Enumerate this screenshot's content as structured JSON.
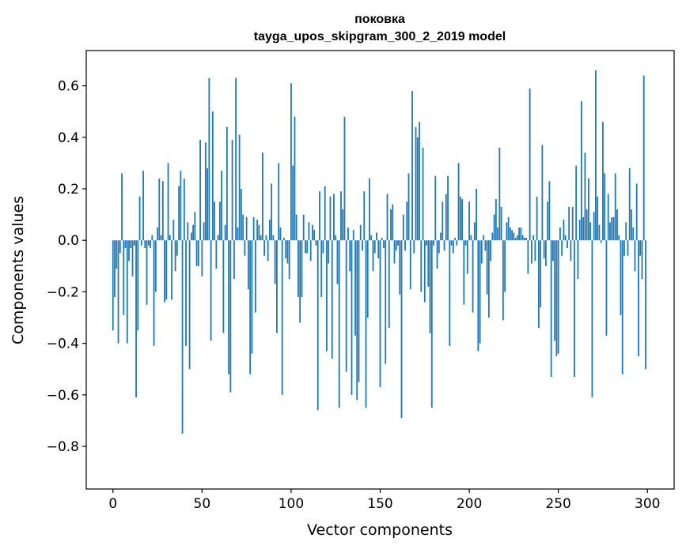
{
  "chart_data": {
    "type": "bar",
    "title": "поковка",
    "subtitle": "tayga_upos_skipgram_300_2_2019 model",
    "xlabel": "Vector components",
    "ylabel": "Components values",
    "xlim": [
      -15,
      315
    ],
    "ylim": [
      -0.9655,
      0.7368
    ],
    "xticks": [
      0,
      50,
      100,
      150,
      200,
      250,
      300
    ],
    "yticks": [
      -0.8,
      -0.6,
      -0.4,
      -0.2,
      0.0,
      0.2,
      0.4,
      0.6
    ],
    "ytick_labels": [
      "−0.8",
      "−0.6",
      "−0.4",
      "−0.2",
      "0.0",
      "0.2",
      "0.4",
      "0.6"
    ],
    "bar_color": "#1f77b4",
    "grid": false,
    "legend": false,
    "x": [
      0,
      1,
      2,
      3,
      4,
      5,
      6,
      7,
      8,
      9,
      10,
      11,
      12,
      13,
      14,
      15,
      16,
      17,
      18,
      19,
      20,
      21,
      22,
      23,
      24,
      25,
      26,
      27,
      28,
      29,
      30,
      31,
      32,
      33,
      34,
      35,
      36,
      37,
      38,
      39,
      40,
      41,
      42,
      43,
      44,
      45,
      46,
      47,
      48,
      49,
      50,
      51,
      52,
      53,
      54,
      55,
      56,
      57,
      58,
      59,
      60,
      61,
      62,
      63,
      64,
      65,
      66,
      67,
      68,
      69,
      70,
      71,
      72,
      73,
      74,
      75,
      76,
      77,
      78,
      79,
      80,
      81,
      82,
      83,
      84,
      85,
      86,
      87,
      88,
      89,
      90,
      91,
      92,
      93,
      94,
      95,
      96,
      97,
      98,
      99,
      100,
      101,
      102,
      103,
      104,
      105,
      106,
      107,
      108,
      109,
      110,
      111,
      112,
      113,
      114,
      115,
      116,
      117,
      118,
      119,
      120,
      121,
      122,
      123,
      124,
      125,
      126,
      127,
      128,
      129,
      130,
      131,
      132,
      133,
      134,
      135,
      136,
      137,
      138,
      139,
      140,
      141,
      142,
      143,
      144,
      145,
      146,
      147,
      148,
      149,
      150,
      151,
      152,
      153,
      154,
      155,
      156,
      157,
      158,
      159,
      160,
      161,
      162,
      163,
      164,
      165,
      166,
      167,
      168,
      169,
      170,
      171,
      172,
      173,
      174,
      175,
      176,
      177,
      178,
      179,
      180,
      181,
      182,
      183,
      184,
      185,
      186,
      187,
      188,
      189,
      190,
      191,
      192,
      193,
      194,
      195,
      196,
      197,
      198,
      199,
      200,
      201,
      202,
      203,
      204,
      205,
      206,
      207,
      208,
      209,
      210,
      211,
      212,
      213,
      214,
      215,
      216,
      217,
      218,
      219,
      220,
      221,
      222,
      223,
      224,
      225,
      226,
      227,
      228,
      229,
      230,
      231,
      232,
      233,
      234,
      235,
      236,
      237,
      238,
      239,
      240,
      241,
      242,
      243,
      244,
      245,
      246,
      247,
      248,
      249,
      250,
      251,
      252,
      253,
      254,
      255,
      256,
      257,
      258,
      259,
      260,
      261,
      262,
      263,
      264,
      265,
      266,
      267,
      268,
      269,
      270,
      271,
      272,
      273,
      274,
      275,
      276,
      277,
      278,
      279,
      280,
      281,
      282,
      283,
      284,
      285,
      286,
      287,
      288,
      289,
      290,
      291,
      292,
      293,
      294,
      295,
      296,
      297,
      298,
      299
    ],
    "values": [
      -0.35,
      -0.22,
      -0.11,
      -0.4,
      -0.05,
      0.26,
      -0.29,
      -0.03,
      -0.4,
      -0.08,
      -0.03,
      -0.14,
      -0.02,
      -0.61,
      -0.35,
      0.17,
      -0.02,
      0.27,
      -0.03,
      -0.25,
      -0.02,
      -0.03,
      0.02,
      -0.41,
      -0.2,
      0.05,
      0.24,
      0.02,
      0.23,
      -0.24,
      -0.23,
      0.3,
      0.02,
      -0.23,
      0.08,
      -0.12,
      -0.06,
      0.21,
      0.27,
      -0.75,
      0.24,
      -0.41,
      0.07,
      -0.5,
      0.03,
      0.06,
      0.11,
      -0.1,
      -0.1,
      0.39,
      -0.14,
      0.07,
      0.38,
      0.28,
      0.63,
      -0.39,
      0.5,
      0.15,
      -0.11,
      0.02,
      0.15,
      0.27,
      -0.36,
      0.06,
      0.44,
      -0.52,
      -0.59,
      0.39,
      -0.15,
      0.63,
      0.05,
      0.41,
      0.2,
      0.1,
      -0.06,
      0.09,
      -0.19,
      -0.52,
      -0.44,
      0.09,
      -0.28,
      0.08,
      0.06,
      0.02,
      0.34,
      -0.06,
      0.02,
      -0.08,
      0.08,
      0.22,
      0.02,
      -0.17,
      -0.36,
      0.3,
      0.05,
      -0.6,
      0.01,
      -0.07,
      -0.09,
      -0.15,
      0.61,
      0.29,
      0.48,
      0.1,
      -0.22,
      -0.32,
      -0.22,
      0.1,
      -0.05,
      -0.05,
      0.07,
      -0.08,
      0.06,
      0.04,
      -0.02,
      -0.66,
      0.19,
      -0.22,
      -0.05,
      0.21,
      -0.43,
      -0.09,
      0.17,
      -0.46,
      0.18,
      0.02,
      -0.17,
      -0.65,
      0.19,
      0.12,
      0.48,
      -0.51,
      0.05,
      -0.12,
      -0.6,
      0.04,
      -0.37,
      -0.62,
      -0.55,
      0.06,
      -0.04,
      0.19,
      -0.65,
      -0.3,
      0.24,
      0.02,
      -0.12,
      -0.05,
      0.03,
      -0.07,
      -0.57,
      0.01,
      -0.03,
      -0.48,
      0.18,
      -0.34,
      0.12,
      0.14,
      -0.09,
      -0.04,
      -0.02,
      -0.21,
      -0.69,
      0.1,
      -0.04,
      0.15,
      0.26,
      -0.19,
      0.58,
      -0.05,
      0.44,
      0.4,
      0.46,
      -0.2,
      0.36,
      -0.24,
      -0.02,
      -0.18,
      -0.36,
      -0.65,
      -0.02,
      0.25,
      -0.11,
      -0.05,
      0.03,
      0.15,
      -0.04,
      0.18,
      0.25,
      -0.41,
      -0.02,
      -0.05,
      0.01,
      -0.02,
      0.3,
      0.17,
      0.16,
      -0.25,
      -0.02,
      -0.13,
      0.15,
      0.02,
      -0.28,
      0.07,
      0.2,
      -0.43,
      -0.4,
      -0.09,
      0.02,
      -0.04,
      -0.21,
      -0.3,
      -0.08,
      0.03,
      0.1,
      0.16,
      0.05,
      0.36,
      0.13,
      -0.31,
      -0.2,
      0.07,
      0.09,
      0.05,
      0.04,
      0.03,
      0.01,
      0.02,
      0.05,
      0.05,
      0.02,
      0.01,
      0.01,
      -0.13,
      0.59,
      -0.09,
      0.02,
      -0.08,
      0.17,
      -0.34,
      -0.26,
      0.37,
      -0.07,
      -0.1,
      0.15,
      0.23,
      -0.53,
      -0.08,
      -0.39,
      -0.45,
      -0.44,
      0.05,
      -0.06,
      0.08,
      0.02,
      -0.03,
      0.13,
      -0.08,
      0.13,
      -0.53,
      0.29,
      -0.15,
      0.08,
      0.54,
      0.09,
      0.34,
      0.12,
      0.24,
      0.07,
      -0.61,
      0.11,
      0.66,
      0.17,
      0.06,
      -0.01,
      0.46,
      0.26,
      -0.37,
      0.18,
      0.07,
      0.09,
      0.09,
      0.26,
      0.12,
      0.02,
      -0.29,
      -0.52,
      -0.06,
      0.07,
      -0.06,
      0.28,
      0.12,
      0.05,
      -0.12,
      0.22,
      -0.45,
      -0.06,
      -0.15,
      0.64,
      -0.5
    ]
  }
}
